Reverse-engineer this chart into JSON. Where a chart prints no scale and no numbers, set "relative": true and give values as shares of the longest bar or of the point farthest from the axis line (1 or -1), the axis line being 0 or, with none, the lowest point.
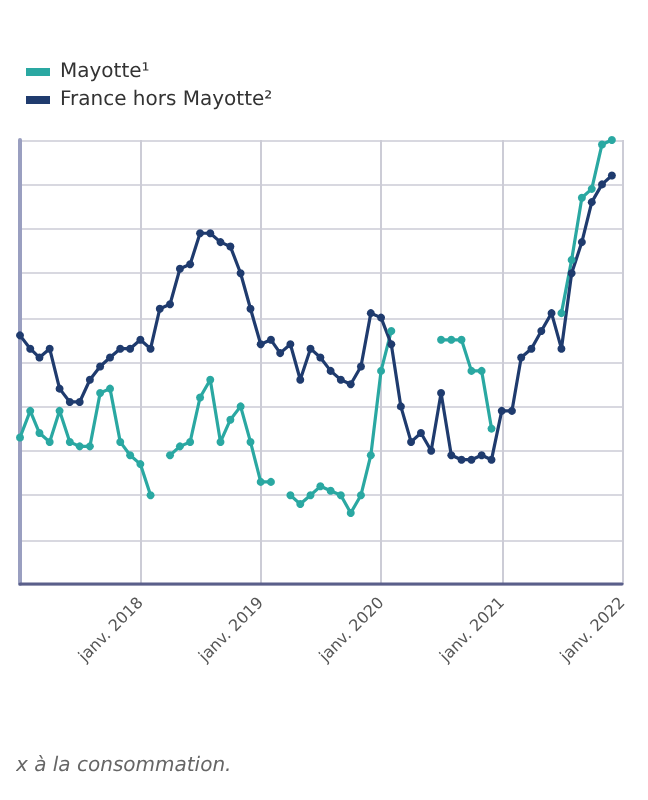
{
  "chart_data": {
    "type": "line",
    "relative": true,
    "legend": "top left",
    "grid": true,
    "marker": "circle",
    "line_style": "solid",
    "x": [
      "2017-01",
      "2017-02",
      "2017-03",
      "2017-04",
      "2017-05",
      "2017-06",
      "2017-07",
      "2017-08",
      "2017-09",
      "2017-10",
      "2017-11",
      "2017-12",
      "2018-01",
      "2018-02",
      "2018-03",
      "2018-04",
      "2018-05",
      "2018-06",
      "2018-07",
      "2018-08",
      "2018-09",
      "2018-10",
      "2018-11",
      "2018-12",
      "2019-01",
      "2019-02",
      "2019-03",
      "2019-04",
      "2019-05",
      "2019-06",
      "2019-07",
      "2019-08",
      "2019-09",
      "2019-10",
      "2019-11",
      "2019-12",
      "2020-01",
      "2020-02",
      "2020-03",
      "2020-04",
      "2020-05",
      "2020-06",
      "2020-07",
      "2020-08",
      "2020-09",
      "2020-10",
      "2020-11",
      "2020-12",
      "2021-01",
      "2021-02",
      "2021-03",
      "2021-04",
      "2021-05",
      "2021-06",
      "2021-07",
      "2021-08",
      "2021-09",
      "2021-10",
      "2021-11",
      "2021-12"
    ],
    "xlim": [
      "2017-01",
      "2022-01"
    ],
    "xticks": [
      {
        "value": "2018-01",
        "label": "janv. 2018"
      },
      {
        "value": "2019-01",
        "label": "janv. 2019"
      },
      {
        "value": "2020-01",
        "label": "janv. 2020"
      },
      {
        "value": "2021-01",
        "label": "janv. 2021"
      },
      {
        "value": "2022-01",
        "label": "janv. 2022"
      }
    ],
    "series": [
      {
        "name": "Mayotte¹",
        "color": "#2aa8a2",
        "values": [
          0.33,
          0.39,
          0.34,
          0.32,
          0.39,
          0.32,
          0.31,
          0.31,
          0.43,
          0.44,
          0.32,
          0.29,
          0.27,
          0.2,
          null,
          0.29,
          0.31,
          0.32,
          0.42,
          0.46,
          0.32,
          0.37,
          0.4,
          0.32,
          0.23,
          0.23,
          null,
          0.2,
          0.18,
          0.2,
          0.22,
          0.21,
          0.2,
          0.16,
          0.2,
          0.29,
          0.48,
          0.57,
          null,
          null,
          null,
          null,
          0.55,
          0.55,
          0.55,
          0.48,
          0.48,
          0.35,
          null,
          null,
          null,
          null,
          null,
          null,
          0.61,
          0.73,
          0.87,
          0.89,
          0.99,
          1
        ]
      },
      {
        "name": "France hors Mayotte²",
        "color": "#1f3b6e",
        "values": [
          0.56,
          0.53,
          0.51,
          0.53,
          0.44,
          0.41,
          0.41,
          0.46,
          0.49,
          0.51,
          0.53,
          0.53,
          0.55,
          0.53,
          0.62,
          0.63,
          0.71,
          0.72,
          0.79,
          0.79,
          0.77,
          0.76,
          0.7,
          0.62,
          0.54,
          0.55,
          0.52,
          0.54,
          0.46,
          0.53,
          0.51,
          0.48,
          0.46,
          0.45,
          0.49,
          0.61,
          0.6,
          0.54,
          0.4,
          0.32,
          0.34,
          0.3,
          0.43,
          0.29,
          0.28,
          0.28,
          0.29,
          0.28,
          0.39,
          0.39,
          0.51,
          0.53,
          0.57,
          0.61,
          0.53,
          0.7,
          0.77,
          0.86,
          0.9,
          0.92
        ]
      }
    ],
    "annotations": [
      "x à la consommation."
    ]
  }
}
